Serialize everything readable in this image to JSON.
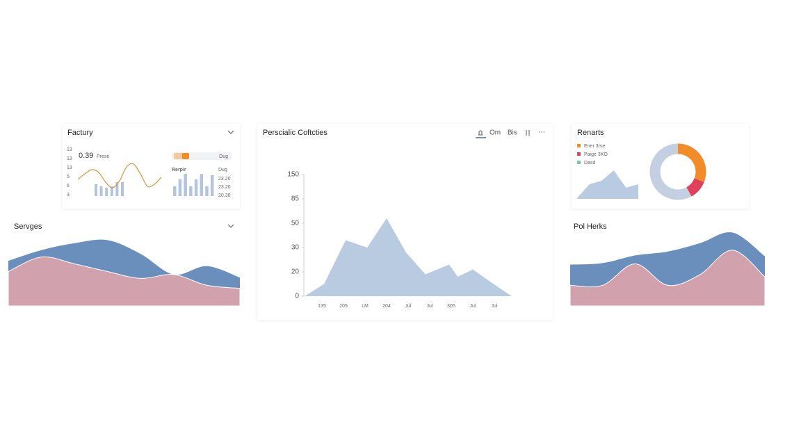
{
  "factury": {
    "title": "Factury",
    "stat": "0.39",
    "stat_label": "Prese",
    "axis_labels": [
      "13",
      "13",
      "13",
      "5",
      "6",
      "3"
    ],
    "toggle_label": "Dug",
    "sub_title": "Rerpir",
    "sub_unit": "Dug",
    "sub_values": [
      "23.20",
      "23.20",
      "20.30"
    ],
    "line": {
      "color": "#d99a4a",
      "values": [
        22,
        30,
        36,
        32,
        18,
        10,
        20,
        40,
        44,
        30,
        12,
        15,
        25
      ]
    },
    "bars": {
      "color": "#b4c4dc",
      "values": [
        17,
        14,
        12,
        14,
        20,
        20
      ]
    },
    "right_bars": {
      "color": "#b4c4dc",
      "values": [
        14,
        24,
        32,
        14,
        24,
        32,
        14,
        30
      ]
    }
  },
  "services": {
    "title": "Servges",
    "type": "stacked-area",
    "ylim": [
      0,
      100
    ],
    "series": [
      {
        "color": "#d1a1ae",
        "values": [
          45,
          64,
          55,
          45,
          36,
          41,
          27,
          23
        ]
      },
      {
        "color": "#6a8fbd",
        "values": [
          14,
          9,
          27,
          41,
          32,
          0,
          25,
          14
        ]
      }
    ]
  },
  "main_chart": {
    "title": "Perscialic Coftcties",
    "tabs": [
      "Om",
      "Bis"
    ],
    "type": "area",
    "color": "#b9cbe0",
    "x": [
      0.2,
      1.1,
      2.1,
      3.1,
      4,
      4.9,
      5.8,
      6.9,
      7.3,
      8,
      8.8,
      9.8
    ],
    "values": [
      0,
      0.5,
      2.3,
      2.0,
      3.2,
      1.8,
      0.9,
      1.3,
      0.8,
      1.1,
      0.6,
      0
    ],
    "xlim": [
      0,
      10
    ],
    "ylim": [
      0,
      5
    ],
    "yticks": [
      0,
      {
        "value": 1,
        "label": "20"
      },
      {
        "value": 2,
        "label": "30"
      },
      {
        "value": 3,
        "label": "50"
      },
      {
        "value": 4,
        "label": "85"
      },
      {
        "value": 5,
        "label": "150"
      }
    ],
    "xticks": [
      {
        "value": 1,
        "label": "135"
      },
      {
        "value": 2,
        "label": "205"
      },
      {
        "value": 3,
        "label": "LM"
      },
      {
        "value": 4,
        "label": "204"
      },
      {
        "value": 5,
        "label": "Jul"
      },
      {
        "value": 6,
        "label": "Jul"
      },
      {
        "value": 7,
        "label": "305"
      },
      {
        "value": 8,
        "label": "Jul"
      },
      {
        "value": 9,
        "label": "Jul"
      }
    ]
  },
  "reports": {
    "title": "Renarts",
    "legend": [
      {
        "name": "Ener 3rse",
        "color": "#f28c28"
      },
      {
        "name": "Paige 3KO",
        "color": "#e0405a"
      },
      {
        "name": "Dasd",
        "color": "#7cc8a0"
      }
    ],
    "area": {
      "color": "#b9cbe0",
      "values": [
        1,
        21,
        26,
        41,
        16,
        21
      ]
    },
    "donut": {
      "values": [
        31,
        11,
        58
      ],
      "colors": [
        "#f28c28",
        "#e0405a",
        "#c4d0e2"
      ]
    }
  },
  "pol_herks": {
    "title": "Pol Herks",
    "type": "stacked-area",
    "ylim": [
      0,
      100
    ],
    "series": [
      {
        "color": "#d1a1ae",
        "values": [
          27,
          27,
          55,
          27,
          41,
          73,
          38
        ]
      },
      {
        "color": "#6a8fbd",
        "values": [
          27,
          29,
          11,
          44,
          41,
          23,
          27
        ]
      }
    ]
  }
}
